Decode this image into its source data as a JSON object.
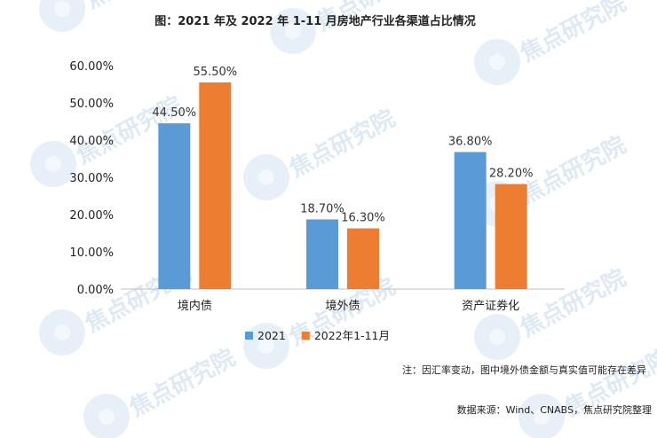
{
  "chart_data": {
    "type": "bar",
    "title": "图：2021 年及 2022 年 1-11 月房地产行业各渠道占比情况",
    "categories": [
      "境内债",
      "境外债",
      "资产证券化"
    ],
    "series": [
      {
        "name": "2021",
        "values": [
          44.5,
          18.7,
          36.8
        ],
        "labels": [
          "44.50%",
          "18.70%",
          "36.80%"
        ],
        "color": "#5b9bd5"
      },
      {
        "name": "2022年1-11月",
        "values": [
          55.5,
          16.3,
          28.2
        ],
        "labels": [
          "55.50%",
          "16.30%",
          "28.20%"
        ],
        "color": "#ed7d31"
      }
    ],
    "ylim": [
      0,
      60
    ],
    "yticks": [
      "0.00%",
      "10.00%",
      "20.00%",
      "30.00%",
      "40.00%",
      "50.00%",
      "60.00%"
    ],
    "xlabel": "",
    "ylabel": "",
    "grid": false,
    "legend_position": "bottom"
  },
  "note": "注：因汇率变动，图中境外债金额与真实值可能存在差异",
  "source": "数据来源：Wind、CNABS，焦点研究院整理",
  "watermark_text": "焦点研究院"
}
